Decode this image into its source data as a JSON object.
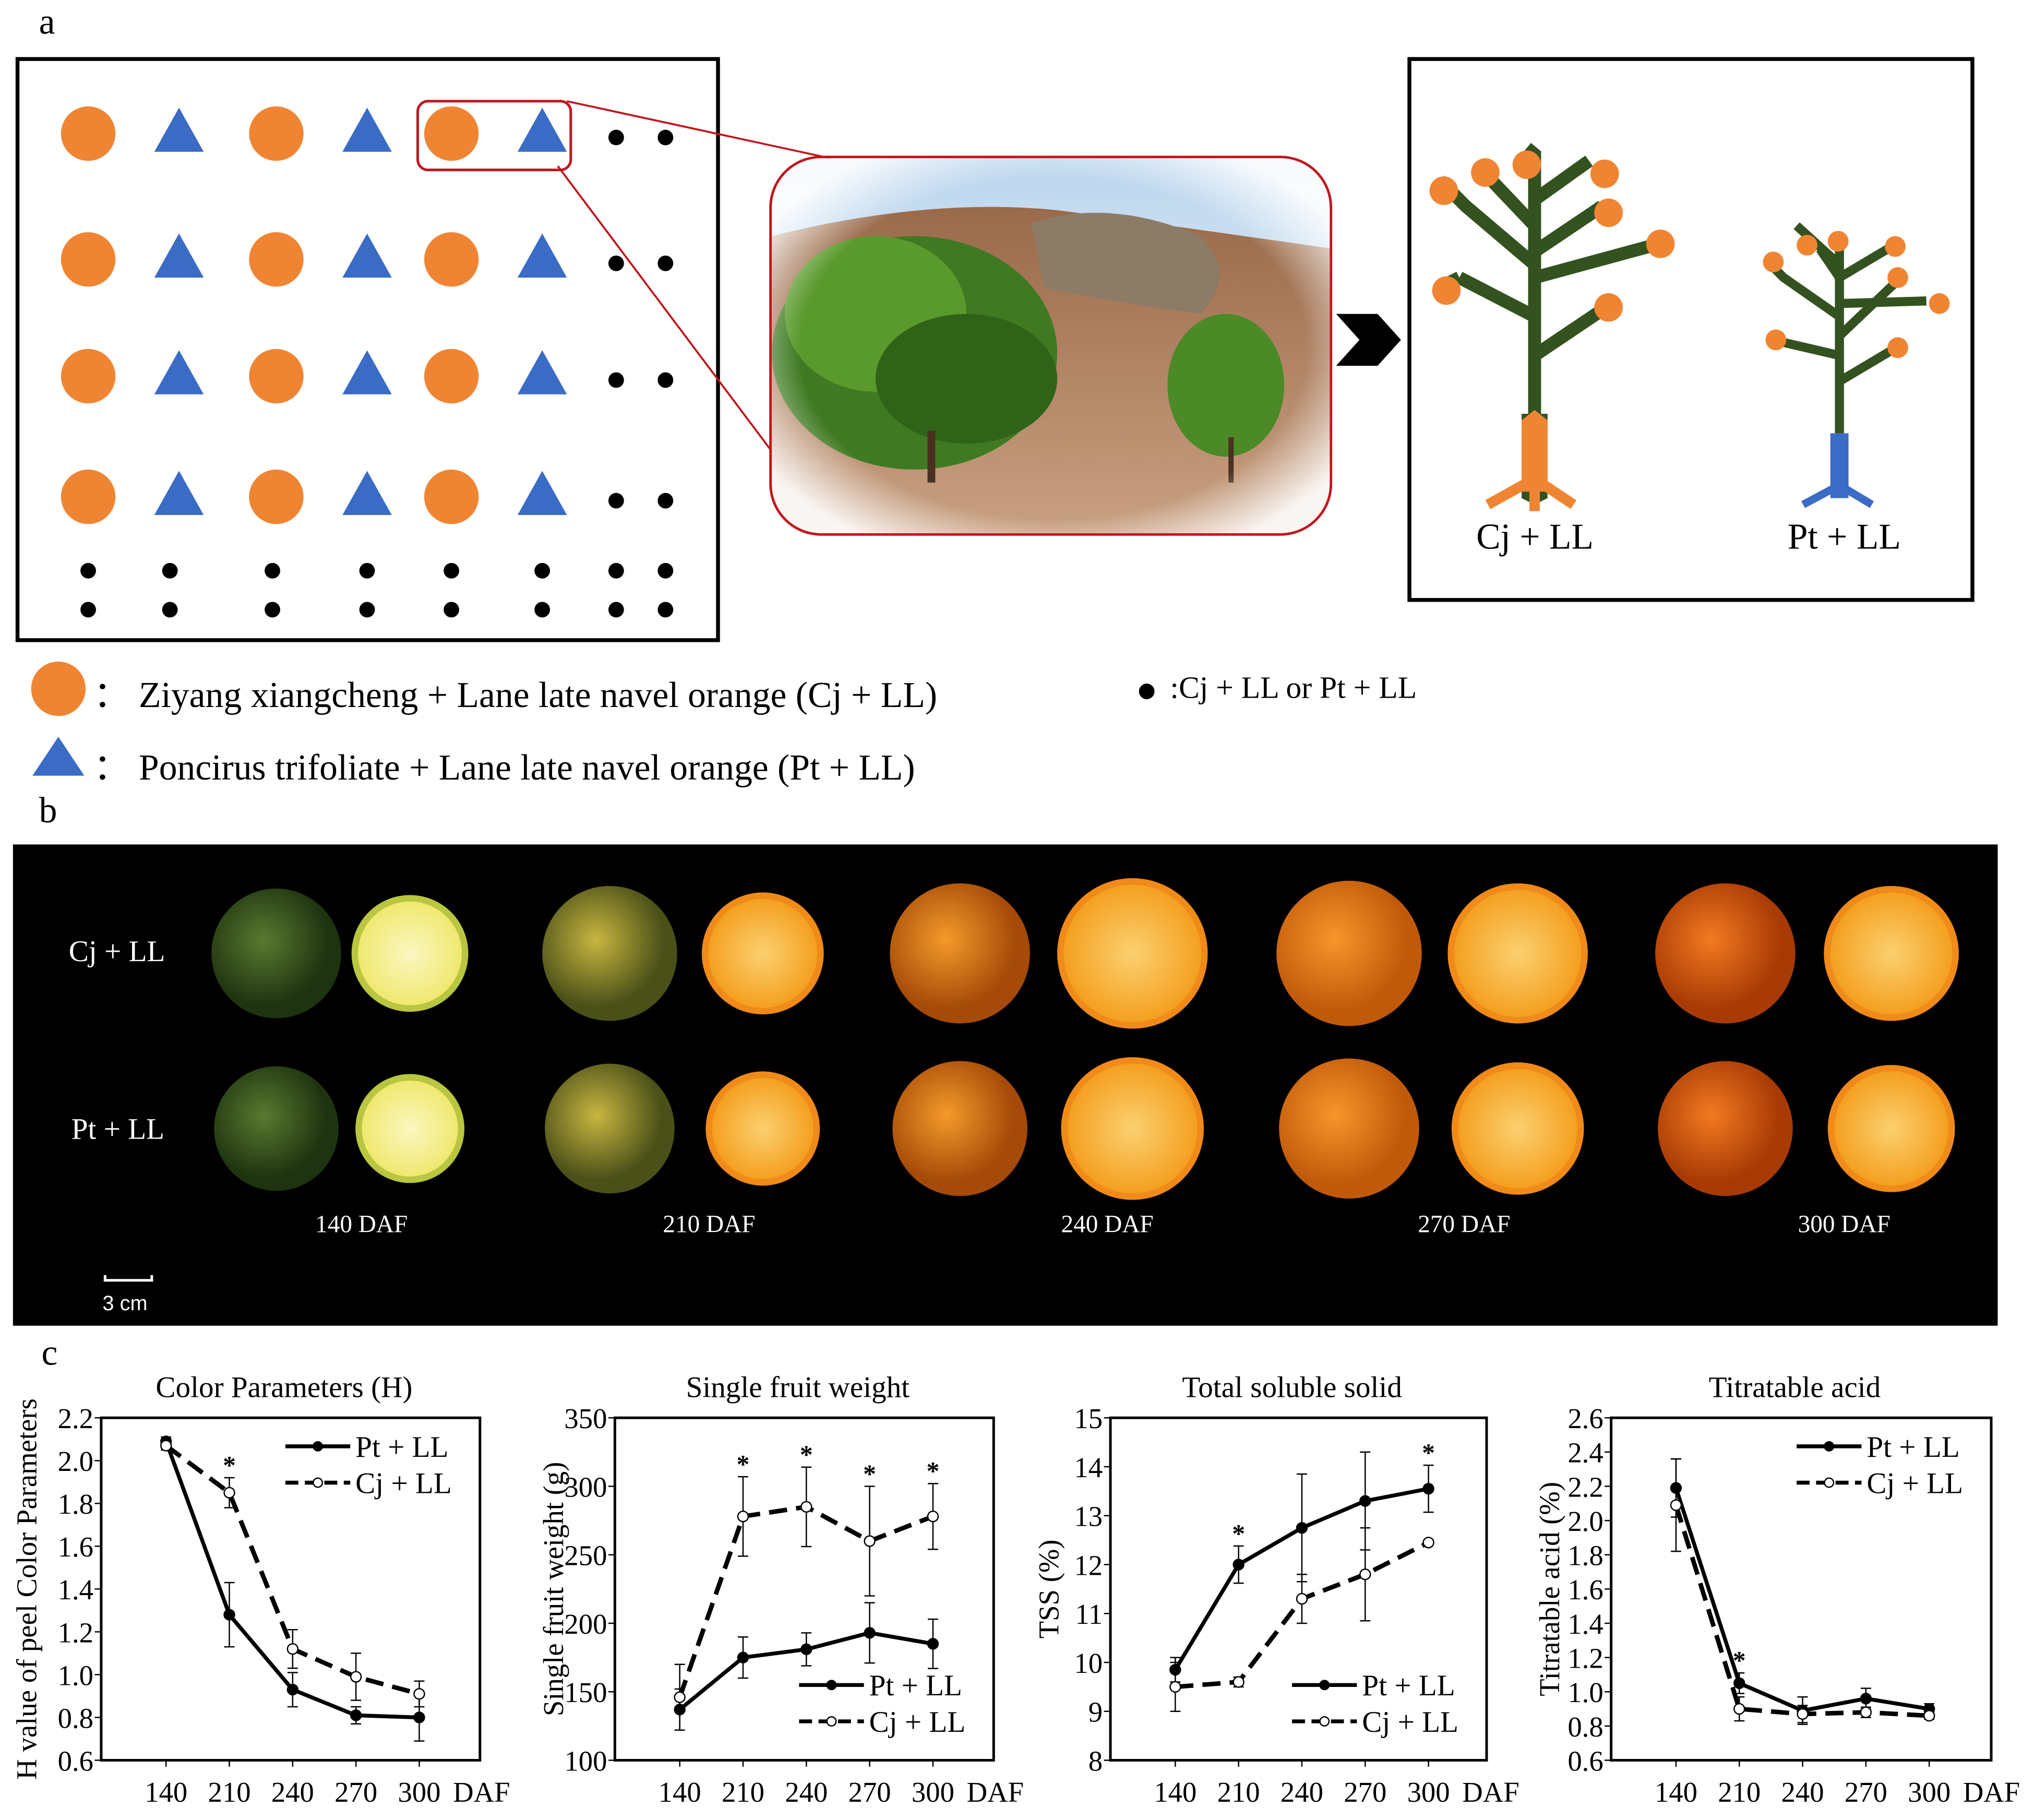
{
  "panels": {
    "a": "a",
    "b": "b",
    "c": "c"
  },
  "panel_a": {
    "tree_labels": [
      "Cj + LL",
      "Pt + LL"
    ],
    "legend": {
      "circle_text": "： Ziyang xiangcheng + Lane late navel orange (Cj + LL)",
      "dot_text": ":Cj + LL or Pt + LL",
      "triangle_text": "： Poncirus trifoliate + Lane late navel orange (Pt + LL)"
    },
    "colors": {
      "orange": "#ef8533",
      "blue": "#3a6bc5",
      "trunk": "#33521f",
      "highlight": "#c0161c"
    }
  },
  "panel_b": {
    "row_labels": [
      "Cj + LL",
      "Pt + LL"
    ],
    "stages": [
      "140 DAF",
      "210 DAF",
      "240 DAF",
      "270 DAF",
      "300 DAF"
    ],
    "scale_bar": "3 cm"
  },
  "chart_data": [
    {
      "type": "line",
      "title": "Color Parameters (H)",
      "ylabel": "H value of peel Color Parameters",
      "xlabel": "DAF",
      "categories": [
        "140",
        "210",
        "240",
        "270",
        "300"
      ],
      "ylim": [
        0.6,
        2.2
      ],
      "yticks": [
        "0.6",
        "0.8",
        "1.0",
        "1.2",
        "1.4",
        "1.6",
        "1.8",
        "2.0",
        "2.2"
      ],
      "legend": "top-right",
      "series": [
        {
          "name": "Pt + LL",
          "style": "solid",
          "values": [
            2.09,
            1.28,
            0.93,
            0.81,
            0.8
          ],
          "errors": [
            0.02,
            0.15,
            0.08,
            0.04,
            0.11
          ]
        },
        {
          "name": "Cj + LL",
          "style": "dashed",
          "values": [
            2.07,
            1.85,
            1.12,
            0.99,
            0.91
          ],
          "errors": [
            0.02,
            0.07,
            0.09,
            0.11,
            0.06
          ]
        }
      ],
      "significant": [
        "210"
      ]
    },
    {
      "type": "line",
      "title": "Single fruit weight",
      "ylabel": "Single fruit weight (g)",
      "xlabel": "DAF",
      "categories": [
        "140",
        "210",
        "240",
        "270",
        "300"
      ],
      "ylim": [
        100,
        350
      ],
      "yticks": [
        "100",
        "150",
        "200",
        "250",
        "300",
        "350"
      ],
      "legend": "bottom-right",
      "series": [
        {
          "name": "Pt + LL",
          "style": "solid",
          "values": [
            137,
            175,
            181,
            193,
            185
          ],
          "errors": [
            15,
            15,
            12,
            22,
            18
          ]
        },
        {
          "name": "Cj + LL",
          "style": "dashed",
          "values": [
            146,
            278,
            285,
            260,
            278
          ],
          "errors": [
            24,
            29,
            29,
            40,
            24
          ]
        }
      ],
      "significant": [
        "210",
        "240",
        "270",
        "300"
      ]
    },
    {
      "type": "line",
      "title": "Total soluble solid",
      "ylabel": "TSS (%)",
      "xlabel": "DAF",
      "categories": [
        "140",
        "210",
        "240",
        "270",
        "300"
      ],
      "ylim": [
        8,
        15
      ],
      "yticks": [
        "8",
        "9",
        "10",
        "11",
        "12",
        "13",
        "14",
        "15"
      ],
      "legend": "bottom-right",
      "series": [
        {
          "name": "Pt + LL",
          "style": "solid",
          "values": [
            9.85,
            12.0,
            12.75,
            13.3,
            13.55
          ],
          "errors": [
            0.25,
            0.38,
            1.1,
            1.0,
            0.48
          ]
        },
        {
          "name": "Cj + LL",
          "style": "dashed",
          "values": [
            9.5,
            9.6,
            11.3,
            11.8,
            12.45
          ],
          "errors": [
            0.5,
            0.1,
            0.5,
            0.95,
            0.05
          ]
        }
      ],
      "significant": [
        "210",
        "300"
      ]
    },
    {
      "type": "line",
      "title": "Titratable acid",
      "ylabel": "Titratable acid (%)",
      "xlabel": "DAF",
      "categories": [
        "140",
        "210",
        "240",
        "270",
        "300"
      ],
      "ylim": [
        0.6,
        2.6
      ],
      "yticks": [
        "0.6",
        "0.8",
        "1.0",
        "1.2",
        "1.4",
        "1.6",
        "1.8",
        "2.0",
        "2.2",
        "2.4",
        "2.6"
      ],
      "legend": "top-right",
      "series": [
        {
          "name": "Pt + LL",
          "style": "solid",
          "values": [
            2.19,
            1.05,
            0.89,
            0.96,
            0.9
          ],
          "errors": [
            0.17,
            0.06,
            0.08,
            0.06,
            0.03
          ]
        },
        {
          "name": "Cj + LL",
          "style": "dashed",
          "values": [
            2.09,
            0.9,
            0.87,
            0.88,
            0.86
          ],
          "errors": [
            0.27,
            0.07,
            0.05,
            0.03,
            0.02
          ]
        }
      ],
      "significant": [
        "210"
      ]
    }
  ],
  "significance_mark": "*"
}
